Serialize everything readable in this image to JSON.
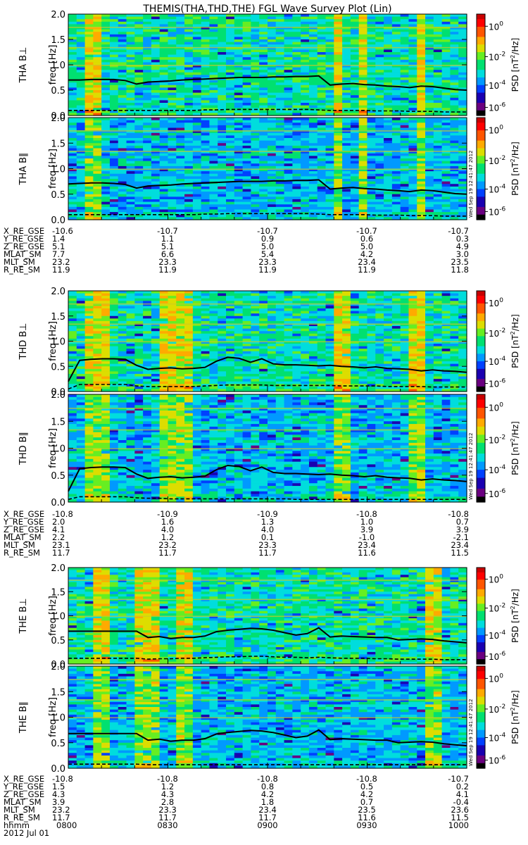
{
  "title": "THEMIS(THA,THD,THE) FGL Wave Survey Plot (Lin)",
  "stamp": "Wed Sep 19 12:41:47 2012",
  "colorbar": {
    "label": "PSD [nT²/Hz]",
    "label_base": "PSD [nT",
    "label_sup": "2",
    "label_end": "/Hz]",
    "ticks": [
      {
        "base": "10",
        "exp": "0"
      },
      {
        "base": "10",
        "exp": "-2"
      },
      {
        "base": "10",
        "exp": "-4"
      },
      {
        "base": "10",
        "exp": "-6"
      }
    ],
    "tick_values": [
      1,
      0.01,
      0.0001,
      1e-06
    ],
    "colors": [
      "#000000",
      "#6a0080",
      "#1a00b0",
      "#0040ff",
      "#0099ff",
      "#00dddd",
      "#00e070",
      "#66ee22",
      "#dddd00",
      "#ffaa00",
      "#ff5500",
      "#ff0000",
      "#c80000"
    ]
  },
  "yaxis": {
    "title": "freq [Hz]",
    "ticks": [
      "2.0",
      "1.5",
      "1.0",
      "0.5",
      "0.0"
    ],
    "range": [
      0,
      2.0
    ]
  },
  "time_axis": {
    "label": "hhmm",
    "ticks": [
      "0800",
      "0830",
      "0900",
      "0930",
      "1000"
    ],
    "date": "2012 Jul 01"
  },
  "chart_data": [
    {
      "type": "heatmap",
      "probe": "THA",
      "panel": "THA B⊥",
      "ylabel": "freq [Hz]",
      "xlabel": "hhmm",
      "x": [
        "0800",
        "0830",
        "0900",
        "0930",
        "1000"
      ],
      "ylim": [
        0,
        2.0
      ],
      "zlim": [
        1e-06,
        1
      ],
      "z_label": "PSD [nT²/Hz]",
      "zscale": "log",
      "bright_bands": [
        [
          "0807",
          "0808"
        ],
        [
          "0920",
          "0922"
        ],
        [
          "0928",
          "0930"
        ],
        [
          "0945",
          "0947"
        ]
      ],
      "solid_line": [
        0.7,
        0.7,
        0.71,
        0.71,
        0.71,
        0.69,
        0.62,
        0.66,
        0.67,
        0.68,
        0.7,
        0.71,
        0.72,
        0.73,
        0.74,
        0.75,
        0.75,
        0.75,
        0.76,
        0.76,
        0.77,
        0.77,
        0.78,
        0.6,
        0.62,
        0.63,
        0.61,
        0.6,
        0.58,
        0.57,
        0.55,
        0.58,
        0.57,
        0.54,
        0.51,
        0.5
      ],
      "dashed_line": [
        0.1,
        0.1,
        0.1,
        0.1,
        0.1,
        0.1,
        0.1,
        0.1,
        0.1,
        0.1,
        0.1,
        0.1,
        0.11,
        0.11,
        0.12,
        0.12,
        0.12,
        0.12,
        0.12,
        0.12,
        0.12,
        0.12,
        0.11,
        0.1,
        0.1,
        0.1,
        0.1,
        0.09,
        0.09,
        0.09,
        0.08,
        0.08,
        0.08,
        0.07,
        0.07,
        0.07
      ]
    },
    {
      "type": "heatmap",
      "probe": "THA",
      "panel": "THA B∥",
      "ylabel": "freq [Hz]",
      "xlabel": "hhmm",
      "x": [
        "0800",
        "0830",
        "0900",
        "0930",
        "1000"
      ],
      "ylim": [
        0,
        2.0
      ],
      "zlim": [
        1e-06,
        1
      ],
      "z_label": "PSD [nT²/Hz]",
      "zscale": "log",
      "bright_bands": [
        [
          "0807",
          "0808"
        ],
        [
          "0920",
          "0922"
        ],
        [
          "0928",
          "0930"
        ],
        [
          "0945",
          "0947"
        ]
      ],
      "solid_line": [
        0.7,
        0.71,
        0.72,
        0.72,
        0.71,
        0.69,
        0.62,
        0.66,
        0.67,
        0.68,
        0.7,
        0.71,
        0.72,
        0.73,
        0.74,
        0.75,
        0.75,
        0.75,
        0.76,
        0.76,
        0.77,
        0.77,
        0.78,
        0.6,
        0.62,
        0.63,
        0.61,
        0.6,
        0.58,
        0.57,
        0.55,
        0.58,
        0.57,
        0.54,
        0.51,
        0.5
      ],
      "dashed_line": [
        0.1,
        0.1,
        0.1,
        0.1,
        0.1,
        0.1,
        0.1,
        0.1,
        0.1,
        0.1,
        0.1,
        0.1,
        0.11,
        0.11,
        0.12,
        0.12,
        0.12,
        0.12,
        0.12,
        0.12,
        0.12,
        0.12,
        0.11,
        0.1,
        0.1,
        0.1,
        0.1,
        0.09,
        0.09,
        0.09,
        0.08,
        0.08,
        0.08,
        0.07,
        0.07,
        0.07
      ]
    },
    {
      "type": "heatmap",
      "probe": "THD",
      "panel": "THD B⊥",
      "ylabel": "freq [Hz]",
      "xlabel": "hhmm",
      "x": [
        "0800",
        "0830",
        "0900",
        "0930",
        "1000"
      ],
      "ylim": [
        0,
        2.0
      ],
      "zlim": [
        1e-06,
        1
      ],
      "z_label": "PSD [nT²/Hz]",
      "zscale": "log",
      "bright_bands": [
        [
          "0805",
          "0807"
        ],
        [
          "0809",
          "0811"
        ],
        [
          "0828",
          "0836"
        ],
        [
          "0920",
          "0923"
        ],
        [
          "0944",
          "0946"
        ]
      ],
      "solid_line": [
        0.2,
        0.62,
        0.64,
        0.65,
        0.65,
        0.64,
        0.52,
        0.44,
        0.46,
        0.47,
        0.45,
        0.46,
        0.48,
        0.6,
        0.68,
        0.66,
        0.58,
        0.65,
        0.55,
        0.53,
        0.53,
        0.52,
        0.51,
        0.52,
        0.5,
        0.49,
        0.47,
        0.49,
        0.46,
        0.45,
        0.44,
        0.41,
        0.43,
        0.41,
        0.4,
        0.38
      ],
      "dashed_line": [
        0.05,
        0.14,
        0.14,
        0.14,
        0.14,
        0.14,
        0.11,
        0.1,
        0.1,
        0.1,
        0.1,
        0.1,
        0.11,
        0.12,
        0.13,
        0.13,
        0.13,
        0.13,
        0.12,
        0.12,
        0.12,
        0.12,
        0.12,
        0.12,
        0.11,
        0.11,
        0.11,
        0.11,
        0.1,
        0.1,
        0.1,
        0.1,
        0.09,
        0.09,
        0.09,
        0.09
      ]
    },
    {
      "type": "heatmap",
      "probe": "THD",
      "panel": "THD B∥",
      "ylabel": "freq [Hz]",
      "xlabel": "hhmm",
      "x": [
        "0800",
        "0830",
        "0900",
        "0930",
        "1000"
      ],
      "ylim": [
        0,
        2.0
      ],
      "zlim": [
        1e-06,
        1
      ],
      "z_label": "PSD [nT²/Hz]",
      "zscale": "log",
      "bright_bands": [
        [
          "0805",
          "0807"
        ],
        [
          "0809",
          "0811"
        ],
        [
          "0828",
          "0836"
        ],
        [
          "0920",
          "0923"
        ],
        [
          "0944",
          "0946"
        ]
      ],
      "solid_line": [
        0.2,
        0.62,
        0.64,
        0.65,
        0.65,
        0.64,
        0.52,
        0.44,
        0.46,
        0.47,
        0.45,
        0.46,
        0.48,
        0.6,
        0.68,
        0.66,
        0.58,
        0.65,
        0.55,
        0.53,
        0.53,
        0.52,
        0.51,
        0.52,
        0.5,
        0.49,
        0.47,
        0.49,
        0.46,
        0.45,
        0.44,
        0.41,
        0.43,
        0.41,
        0.4,
        0.38
      ],
      "dashed_line": [
        0.05,
        0.1,
        0.1,
        0.1,
        0.1,
        0.1,
        0.08,
        0.07,
        0.07,
        0.06,
        0.06,
        0.06,
        0.06,
        0.06,
        0.06,
        0.06,
        0.06,
        0.06,
        0.06,
        0.06,
        0.05,
        0.05,
        0.05,
        0.05,
        0.05,
        0.05,
        0.05,
        0.05,
        0.05,
        0.05,
        0.05,
        0.05,
        0.05,
        0.05,
        0.05,
        0.05
      ]
    },
    {
      "type": "heatmap",
      "probe": "THE",
      "panel": "THE B⊥",
      "ylabel": "freq [Hz]",
      "xlabel": "hhmm",
      "x": [
        "0800",
        "0830",
        "0900",
        "0930",
        "1000"
      ],
      "ylim": [
        0,
        2.0
      ],
      "zlim": [
        1e-06,
        1
      ],
      "z_label": "PSD [nT²/Hz]",
      "zscale": "log",
      "bright_bands": [
        [
          "0809",
          "0811"
        ],
        [
          "0822",
          "0826"
        ],
        [
          "0833",
          "0837"
        ],
        [
          "0949",
          "0951"
        ]
      ],
      "solid_line": [
        0.68,
        0.68,
        0.68,
        0.68,
        0.68,
        0.68,
        0.68,
        0.55,
        0.57,
        0.53,
        0.55,
        0.55,
        0.58,
        0.67,
        0.7,
        0.72,
        0.74,
        0.73,
        0.7,
        0.65,
        0.6,
        0.63,
        0.75,
        0.56,
        0.58,
        0.57,
        0.56,
        0.55,
        0.55,
        0.5,
        0.51,
        0.52,
        0.51,
        0.48,
        0.46,
        0.44
      ],
      "dashed_line": [
        0.12,
        0.12,
        0.12,
        0.12,
        0.12,
        0.12,
        0.12,
        0.1,
        0.11,
        0.11,
        0.12,
        0.12,
        0.13,
        0.14,
        0.15,
        0.15,
        0.16,
        0.16,
        0.15,
        0.14,
        0.14,
        0.13,
        0.14,
        0.13,
        0.12,
        0.12,
        0.12,
        0.11,
        0.11,
        0.1,
        0.1,
        0.1,
        0.1,
        0.09,
        0.09,
        0.09
      ]
    },
    {
      "type": "heatmap",
      "probe": "THE",
      "panel": "THE B∥",
      "ylabel": "freq [Hz]",
      "xlabel": "hhmm",
      "x": [
        "0800",
        "0830",
        "0900",
        "0930",
        "1000"
      ],
      "ylim": [
        0,
        2.0
      ],
      "zlim": [
        1e-06,
        1
      ],
      "z_label": "PSD [nT²/Hz]",
      "zscale": "log",
      "bright_bands": [
        [
          "0809",
          "0811"
        ],
        [
          "0822",
          "0826"
        ],
        [
          "0833",
          "0837"
        ],
        [
          "0949",
          "0951"
        ]
      ],
      "solid_line": [
        0.68,
        0.68,
        0.68,
        0.68,
        0.68,
        0.68,
        0.68,
        0.55,
        0.57,
        0.53,
        0.55,
        0.55,
        0.58,
        0.67,
        0.7,
        0.72,
        0.74,
        0.73,
        0.7,
        0.65,
        0.6,
        0.63,
        0.75,
        0.56,
        0.58,
        0.57,
        0.56,
        0.55,
        0.55,
        0.5,
        0.51,
        0.52,
        0.51,
        0.48,
        0.46,
        0.44
      ],
      "dashed_line": [
        0.08,
        0.08,
        0.08,
        0.08,
        0.08,
        0.08,
        0.08,
        0.07,
        0.07,
        0.07,
        0.07,
        0.07,
        0.07,
        0.07,
        0.07,
        0.07,
        0.07,
        0.07,
        0.07,
        0.07,
        0.07,
        0.07,
        0.07,
        0.07,
        0.07,
        0.07,
        0.07,
        0.07,
        0.07,
        0.07,
        0.07,
        0.07,
        0.07,
        0.07,
        0.07,
        0.07
      ]
    }
  ],
  "panels": [
    {
      "title_probe": "THA",
      "title_comp": "B⊥"
    },
    {
      "title_probe": "THA",
      "title_comp": "B∥"
    },
    {
      "title_probe": "THD",
      "title_comp": "B⊥"
    },
    {
      "title_probe": "THD",
      "title_comp": "B∥"
    },
    {
      "title_probe": "THE",
      "title_comp": "B⊥"
    },
    {
      "title_probe": "THE",
      "title_comp": "B∥"
    }
  ],
  "ephemeris": [
    {
      "probe": "THA",
      "rows": [
        {
          "name": "X_RE_GSE",
          "values": [
            "-10.6",
            "-10.7",
            "-10.7",
            "-10.7",
            "-10.7"
          ]
        },
        {
          "name": "Y_RE_GSE",
          "values": [
            "1.4",
            "1.1",
            "0.9",
            "0.6",
            "0.3"
          ]
        },
        {
          "name": "Z_RE_GSE",
          "values": [
            "5.1",
            "5.1",
            "5.0",
            "5.0",
            "4.9"
          ]
        },
        {
          "name": "MLAT_SM",
          "values": [
            "7.7",
            "6.6",
            "5.4",
            "4.2",
            "3.0"
          ]
        },
        {
          "name": "MLT_SM",
          "values": [
            "23.2",
            "23.3",
            "23.3",
            "23.4",
            "23.5"
          ]
        },
        {
          "name": "R_RE_SM",
          "values": [
            "11.9",
            "11.9",
            "11.9",
            "11.9",
            "11.8"
          ]
        }
      ]
    },
    {
      "probe": "THD",
      "rows": [
        {
          "name": "X_RE_GSE",
          "values": [
            "-10.8",
            "-10.9",
            "-10.9",
            "-10.8",
            "-10.8"
          ]
        },
        {
          "name": "Y_RE_GSE",
          "values": [
            "2.0",
            "1.6",
            "1.3",
            "1.0",
            "0.7"
          ]
        },
        {
          "name": "Z_RE_GSE",
          "values": [
            "4.1",
            "4.0",
            "4.0",
            "3.9",
            "3.9"
          ]
        },
        {
          "name": "MLAT_SM",
          "values": [
            "2.2",
            "1.2",
            "0.1",
            "-1.0",
            "-2.1"
          ]
        },
        {
          "name": "MLT_SM",
          "values": [
            "23.1",
            "23.2",
            "23.3",
            "23.4",
            "23.4"
          ]
        },
        {
          "name": "R_RE_SM",
          "values": [
            "11.7",
            "11.7",
            "11.7",
            "11.6",
            "11.5"
          ]
        }
      ]
    },
    {
      "probe": "THE",
      "rows": [
        {
          "name": "X_RE_GSE",
          "values": [
            "-10.8",
            "-10.8",
            "-10.8",
            "-10.8",
            "-10.7"
          ]
        },
        {
          "name": "Y_RE_GSE",
          "values": [
            "1.5",
            "1.2",
            "0.8",
            "0.5",
            "0.2"
          ]
        },
        {
          "name": "Z_RE_GSE",
          "values": [
            "4.3",
            "4.3",
            "4.2",
            "4.2",
            "4.1"
          ]
        },
        {
          "name": "MLAT_SM",
          "values": [
            "3.9",
            "2.8",
            "1.8",
            "0.7",
            "-0.4"
          ]
        },
        {
          "name": "MLT_SM",
          "values": [
            "23.2",
            "23.3",
            "23.4",
            "23.5",
            "23.6"
          ]
        },
        {
          "name": "R_RE_SM",
          "values": [
            "11.7",
            "11.7",
            "11.7",
            "11.6",
            "11.5"
          ]
        }
      ]
    }
  ]
}
